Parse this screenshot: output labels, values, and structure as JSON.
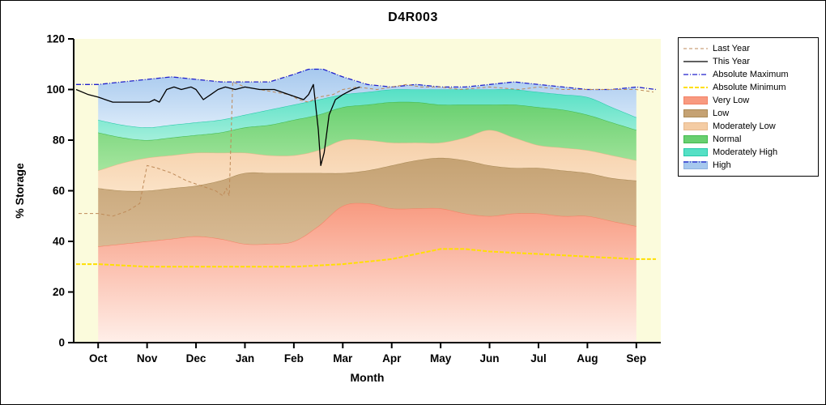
{
  "title": "D4R003",
  "chart_data": {
    "type": "area",
    "title": "D4R003",
    "xlabel": "Month",
    "ylabel": "% Storage",
    "ylim": [
      0,
      120
    ],
    "y_ticks": [
      0,
      20,
      40,
      60,
      80,
      100,
      120
    ],
    "x_ticks": [
      "Oct",
      "Nov",
      "Dec",
      "Jan",
      "Feb",
      "Mar",
      "Apr",
      "May",
      "Jun",
      "Jul",
      "Aug",
      "Sep"
    ],
    "x_units": "month index, 0 = Oct tick ... 11 = Sep tick",
    "colors": {
      "plot_bg": "#FBFBDC",
      "axis": "#000000",
      "text": "#000000"
    },
    "bands": [
      {
        "name": "Very Low",
        "fill_bottom": "#FFEFE9",
        "fill_top": "#F89A80",
        "edge": "#F48266",
        "points": [
          [
            0,
            38
          ],
          [
            0.5,
            39
          ],
          [
            1,
            40
          ],
          [
            1.5,
            41
          ],
          [
            2,
            42
          ],
          [
            2.5,
            41
          ],
          [
            3,
            39
          ],
          [
            3.5,
            39
          ],
          [
            4,
            40
          ],
          [
            4.5,
            46
          ],
          [
            5,
            54
          ],
          [
            5.5,
            55
          ],
          [
            6,
            53
          ],
          [
            6.5,
            53
          ],
          [
            7,
            53
          ],
          [
            7.5,
            51
          ],
          [
            8,
            50
          ],
          [
            8.5,
            51
          ],
          [
            9,
            51
          ],
          [
            9.5,
            50
          ],
          [
            10,
            50
          ],
          [
            10.5,
            48
          ],
          [
            11,
            46
          ]
        ]
      },
      {
        "name": "Low",
        "fill_bottom": "#D8BB95",
        "fill_top": "#C5A273",
        "edge": "#AA8A56",
        "points": [
          [
            0,
            61
          ],
          [
            0.5,
            60
          ],
          [
            1,
            60
          ],
          [
            1.5,
            61
          ],
          [
            2,
            62
          ],
          [
            2.5,
            64
          ],
          [
            3,
            67
          ],
          [
            3.5,
            67
          ],
          [
            4,
            67
          ],
          [
            4.5,
            67
          ],
          [
            5,
            67
          ],
          [
            5.5,
            68
          ],
          [
            6,
            70
          ],
          [
            6.5,
            72
          ],
          [
            7,
            73
          ],
          [
            7.5,
            72
          ],
          [
            8,
            70
          ],
          [
            8.5,
            69
          ],
          [
            9,
            69
          ],
          [
            9.5,
            68
          ],
          [
            10,
            67
          ],
          [
            10.5,
            65
          ],
          [
            11,
            64
          ]
        ]
      },
      {
        "name": "Moderately Low",
        "fill_bottom": "#FBE2C6",
        "fill_top": "#F4CCA4",
        "edge": "#E7B98C",
        "points": [
          [
            0,
            68
          ],
          [
            0.5,
            71
          ],
          [
            1,
            73
          ],
          [
            1.5,
            74
          ],
          [
            2,
            75
          ],
          [
            2.5,
            75
          ],
          [
            3,
            75
          ],
          [
            3.5,
            74
          ],
          [
            4,
            74
          ],
          [
            4.5,
            76
          ],
          [
            5,
            80
          ],
          [
            5.5,
            80
          ],
          [
            6,
            79
          ],
          [
            6.5,
            79
          ],
          [
            7,
            79
          ],
          [
            7.5,
            81
          ],
          [
            8,
            84
          ],
          [
            8.5,
            81
          ],
          [
            9,
            78
          ],
          [
            9.5,
            77
          ],
          [
            10,
            76
          ],
          [
            10.5,
            74
          ],
          [
            11,
            72
          ]
        ]
      },
      {
        "name": "Normal",
        "fill_bottom": "#A5E59E",
        "fill_top": "#69D070",
        "edge": "#42BA4E",
        "points": [
          [
            0,
            83
          ],
          [
            0.5,
            81
          ],
          [
            1,
            80
          ],
          [
            1.5,
            81
          ],
          [
            2,
            82
          ],
          [
            2.5,
            83
          ],
          [
            3,
            85
          ],
          [
            3.5,
            86
          ],
          [
            4,
            88
          ],
          [
            4.5,
            90
          ],
          [
            5,
            93
          ],
          [
            5.5,
            94
          ],
          [
            6,
            95
          ],
          [
            6.5,
            95
          ],
          [
            7,
            94
          ],
          [
            7.5,
            94
          ],
          [
            8,
            94
          ],
          [
            8.5,
            94
          ],
          [
            9,
            93
          ],
          [
            9.5,
            92
          ],
          [
            10,
            90
          ],
          [
            10.5,
            87
          ],
          [
            11,
            84
          ]
        ]
      },
      {
        "name": "Moderately High",
        "fill_bottom": "#A3EFDB",
        "fill_top": "#55E0C5",
        "edge": "#25C9A9",
        "points": [
          [
            0,
            88
          ],
          [
            0.5,
            86
          ],
          [
            1,
            85
          ],
          [
            1.5,
            86
          ],
          [
            2,
            87
          ],
          [
            2.5,
            88
          ],
          [
            3,
            90
          ],
          [
            3.5,
            92
          ],
          [
            4,
            94
          ],
          [
            4.5,
            96
          ],
          [
            5,
            98
          ],
          [
            5.5,
            99
          ],
          [
            6,
            100
          ],
          [
            6.5,
            100
          ],
          [
            7,
            100
          ],
          [
            7.5,
            100
          ],
          [
            8,
            100
          ],
          [
            8.5,
            100
          ],
          [
            9,
            99
          ],
          [
            9.5,
            98
          ],
          [
            10,
            97
          ],
          [
            10.5,
            93
          ],
          [
            11,
            89
          ]
        ]
      },
      {
        "name": "High",
        "fill_bottom": "#DAEAF9",
        "fill_top": "#A6C8EE",
        "edge": "none",
        "points": [
          [
            0,
            102
          ],
          [
            0.5,
            103
          ],
          [
            1,
            104
          ],
          [
            1.5,
            105
          ],
          [
            2,
            104
          ],
          [
            2.5,
            103
          ],
          [
            3,
            103
          ],
          [
            3.5,
            103
          ],
          [
            4,
            106
          ],
          [
            4.3,
            108
          ],
          [
            4.6,
            108
          ],
          [
            5,
            105
          ],
          [
            5.5,
            102
          ],
          [
            6,
            101
          ],
          [
            6.5,
            102
          ],
          [
            7,
            101
          ],
          [
            7.5,
            101
          ],
          [
            8,
            102
          ],
          [
            8.5,
            103
          ],
          [
            9,
            102
          ],
          [
            9.5,
            101
          ],
          [
            10,
            100
          ],
          [
            10.5,
            100
          ],
          [
            11,
            101
          ]
        ]
      }
    ],
    "lines": [
      {
        "name": "Absolute Minimum",
        "color": "#FFDF00",
        "width": 2,
        "dash": "5,2",
        "points": [
          [
            -0.45,
            31
          ],
          [
            0,
            31
          ],
          [
            1,
            30
          ],
          [
            2,
            30
          ],
          [
            3,
            30
          ],
          [
            4,
            30
          ],
          [
            5,
            31
          ],
          [
            6,
            33
          ],
          [
            6.5,
            35
          ],
          [
            7,
            37
          ],
          [
            7.5,
            37
          ],
          [
            8,
            36
          ],
          [
            9,
            35
          ],
          [
            10,
            34
          ],
          [
            11,
            33
          ],
          [
            11.4,
            33
          ]
        ]
      },
      {
        "name": "Absolute Maximum",
        "color": "#2222CC",
        "width": 1.3,
        "dash": "6,2,1,2",
        "points": [
          [
            -0.45,
            102
          ],
          [
            0,
            102
          ],
          [
            0.5,
            103
          ],
          [
            1,
            104
          ],
          [
            1.5,
            105
          ],
          [
            2,
            104
          ],
          [
            2.5,
            103
          ],
          [
            3,
            103
          ],
          [
            3.5,
            103
          ],
          [
            4,
            106
          ],
          [
            4.3,
            108
          ],
          [
            4.6,
            108
          ],
          [
            5,
            105
          ],
          [
            5.5,
            102
          ],
          [
            6,
            101
          ],
          [
            6.5,
            102
          ],
          [
            7,
            101
          ],
          [
            7.5,
            101
          ],
          [
            8,
            102
          ],
          [
            8.5,
            103
          ],
          [
            9,
            102
          ],
          [
            9.5,
            101
          ],
          [
            10,
            100
          ],
          [
            10.5,
            100
          ],
          [
            11,
            101
          ],
          [
            11.4,
            100
          ]
        ]
      },
      {
        "name": "Last Year",
        "color": "#BE8A58",
        "width": 1,
        "dash": "4,3",
        "points": [
          [
            -0.4,
            51
          ],
          [
            0,
            51
          ],
          [
            0.3,
            50
          ],
          [
            0.6,
            52
          ],
          [
            0.85,
            55
          ],
          [
            1,
            70
          ],
          [
            1.2,
            69
          ],
          [
            1.5,
            67
          ],
          [
            1.8,
            64
          ],
          [
            2.1,
            62
          ],
          [
            2.4,
            60
          ],
          [
            2.55,
            58
          ],
          [
            2.62,
            61
          ],
          [
            2.68,
            58
          ],
          [
            2.75,
            103
          ],
          [
            3,
            101
          ],
          [
            3.3,
            100
          ],
          [
            3.6,
            99
          ],
          [
            3.9,
            98
          ],
          [
            4.1,
            96
          ],
          [
            4.3,
            95
          ],
          [
            4.5,
            97
          ],
          [
            4.8,
            98
          ],
          [
            5,
            100
          ],
          [
            5.3,
            101
          ],
          [
            5.7,
            100
          ],
          [
            6,
            101
          ],
          [
            6.3,
            102
          ],
          [
            6.6,
            101
          ],
          [
            7,
            101
          ],
          [
            7.4,
            100
          ],
          [
            8,
            101
          ],
          [
            8.6,
            100
          ],
          [
            9,
            101
          ],
          [
            9.5,
            100
          ],
          [
            10,
            100
          ],
          [
            10.5,
            100
          ],
          [
            11,
            100
          ],
          [
            11.35,
            99
          ]
        ]
      },
      {
        "name": "This Year",
        "color": "#000000",
        "width": 1.3,
        "dash": "",
        "points": [
          [
            -0.45,
            100
          ],
          [
            -0.2,
            98
          ],
          [
            0,
            97
          ],
          [
            0.3,
            95
          ],
          [
            0.6,
            95
          ],
          [
            0.9,
            95
          ],
          [
            1.05,
            95
          ],
          [
            1.15,
            96
          ],
          [
            1.25,
            95
          ],
          [
            1.4,
            100
          ],
          [
            1.55,
            101
          ],
          [
            1.7,
            100
          ],
          [
            1.9,
            101
          ],
          [
            2,
            100
          ],
          [
            2.15,
            96
          ],
          [
            2.3,
            98
          ],
          [
            2.45,
            100
          ],
          [
            2.6,
            101
          ],
          [
            2.8,
            100
          ],
          [
            3,
            101
          ],
          [
            3.3,
            100
          ],
          [
            3.6,
            100
          ],
          [
            3.9,
            98
          ],
          [
            4.05,
            97
          ],
          [
            4.2,
            96
          ],
          [
            4.3,
            98
          ],
          [
            4.4,
            102
          ],
          [
            4.5,
            84
          ],
          [
            4.55,
            70
          ],
          [
            4.62,
            75
          ],
          [
            4.72,
            90
          ],
          [
            4.85,
            96
          ],
          [
            5,
            98
          ],
          [
            5.2,
            100
          ],
          [
            5.35,
            101
          ]
        ]
      }
    ]
  },
  "legend": {
    "items": [
      {
        "label": "Last Year",
        "swatch": "line",
        "color": "#BE8A58",
        "dash": "4,3",
        "width": 1
      },
      {
        "label": "This Year",
        "swatch": "line",
        "color": "#000000",
        "dash": "",
        "width": 1.3
      },
      {
        "label": "Absolute Maximum",
        "swatch": "line",
        "color": "#2222CC",
        "dash": "6,2,1,2",
        "width": 1.3
      },
      {
        "label": "Absolute Minimum",
        "swatch": "line",
        "color": "#FFDF00",
        "dash": "5,2",
        "width": 2
      },
      {
        "label": "Very Low",
        "swatch": "fill",
        "color": "#F89A80",
        "edge": "#F48266"
      },
      {
        "label": "Low",
        "swatch": "fill",
        "color": "#C5A273",
        "edge": "#AA8A56"
      },
      {
        "label": "Moderately Low",
        "swatch": "fill",
        "color": "#F4CCA4",
        "edge": "#E7B98C"
      },
      {
        "label": "Normal",
        "swatch": "fill",
        "color": "#69D070",
        "edge": "#42BA4E"
      },
      {
        "label": "Moderately High",
        "swatch": "fill",
        "color": "#55E0C5",
        "edge": "#25C9A9"
      },
      {
        "label": "High",
        "swatch": "fill",
        "color": "#A6C8EE",
        "edge": "#8FB2E0",
        "overlay_color": "#2222CC",
        "overlay_dash": "6,2,1,2"
      }
    ]
  }
}
